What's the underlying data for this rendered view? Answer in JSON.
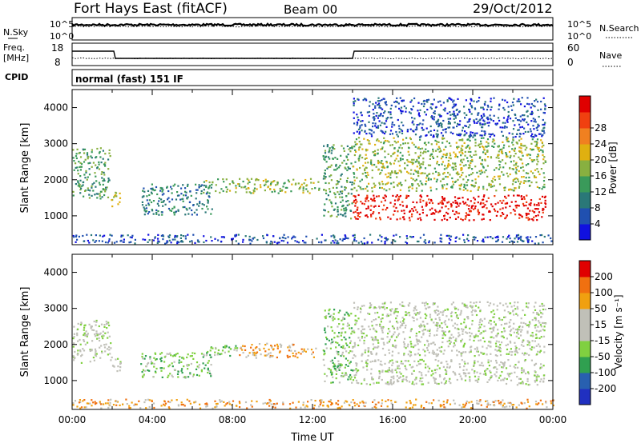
{
  "header": {
    "title": "Fort Hays East (fitACF)",
    "beam": "Beam 00",
    "date": "29/Oct/2012"
  },
  "params": {
    "nsky_label": "N.Sky",
    "nsky_ticks": [
      "10^5",
      "10^0"
    ],
    "nsearch_label": "N.Search",
    "nsearch_ticks": [
      "10^5",
      "10^0"
    ],
    "freq_label": "Freq.",
    "freq_unit": "[MHz]",
    "freq_ticks": [
      "18",
      "8"
    ],
    "nave_label": "Nave",
    "nave_ticks": [
      "60",
      "0"
    ],
    "cpid_label": "CPID",
    "cpid_text": "normal (fast) 151 IF"
  },
  "chart_data": [
    {
      "type": "heatmap",
      "name": "power",
      "ylabel": "Slant Range [km]",
      "xlabel": "",
      "ylim": [
        200,
        4500
      ],
      "yticks": [
        "1000",
        "2000",
        "3000",
        "4000"
      ],
      "xlim": [
        0,
        24
      ],
      "colorbar": {
        "label": "Power [dB]",
        "ticks": [
          "4",
          "8",
          "12",
          "16",
          "20",
          "24",
          "28"
        ],
        "colors": [
          "#1010e0",
          "#2050b0",
          "#2a7878",
          "#3a9a5a",
          "#88b040",
          "#e0b010",
          "#f08020",
          "#f04010",
          "#e00000"
        ]
      },
      "regions": [
        {
          "t0": 0.0,
          "t1": 1.9,
          "r0": 1500,
          "r1": 2900,
          "level": 3
        },
        {
          "t0": 1.9,
          "t1": 2.4,
          "r0": 1250,
          "r1": 1700,
          "level": 4
        },
        {
          "t0": 3.4,
          "t1": 7.0,
          "r0": 1050,
          "r1": 1900,
          "level": 2
        },
        {
          "t0": 6.5,
          "t1": 12.3,
          "r0": 1650,
          "r1": 2050,
          "level": 4
        },
        {
          "t0": 12.5,
          "t1": 14.0,
          "r0": 950,
          "r1": 3000,
          "level": 3
        },
        {
          "t0": 14.0,
          "t1": 23.6,
          "r0": 900,
          "r1": 1600,
          "level": 8
        },
        {
          "t0": 14.0,
          "t1": 23.6,
          "r0": 1700,
          "r1": 3200,
          "level": 4
        },
        {
          "t0": 14.0,
          "t1": 23.6,
          "r0": 3200,
          "r1": 4300,
          "level": 1
        },
        {
          "t0": 0.0,
          "t1": 24.0,
          "r0": 250,
          "r1": 500,
          "level": 1
        }
      ]
    },
    {
      "type": "heatmap",
      "name": "velocity",
      "ylabel": "Slant Range [km]",
      "xlabel": "Time UT",
      "ylim": [
        200,
        4500
      ],
      "yticks": [
        "1000",
        "2000",
        "3000",
        "4000"
      ],
      "xlim": [
        0,
        24
      ],
      "xticks": [
        "00:00",
        "04:00",
        "08:00",
        "12:00",
        "16:00",
        "20:00",
        "00:00"
      ],
      "colorbar": {
        "label": "Velocity [m s⁻¹]",
        "ticks": [
          "200",
          "100",
          "50",
          "15",
          "-15",
          "-50",
          "-100",
          "-200"
        ],
        "colors": [
          "#2030c0",
          "#2860b0",
          "#30a050",
          "#80d040",
          "#c0c0b8",
          "#c0c0b8",
          "#f0a010",
          "#f07010",
          "#e00000"
        ]
      },
      "regions": [
        {
          "t0": 0.0,
          "t1": 1.9,
          "r0": 1500,
          "r1": 2700,
          "level": 4
        },
        {
          "t0": 1.9,
          "t1": 2.4,
          "r0": 1250,
          "r1": 1700,
          "level": 4
        },
        {
          "t0": 3.4,
          "t1": 7.0,
          "r0": 1100,
          "r1": 1800,
          "level": 3
        },
        {
          "t0": 6.5,
          "t1": 8.3,
          "r0": 1650,
          "r1": 2000,
          "level": 3
        },
        {
          "t0": 8.3,
          "t1": 12.3,
          "r0": 1650,
          "r1": 2050,
          "level": 6
        },
        {
          "t0": 12.5,
          "t1": 14.0,
          "r0": 950,
          "r1": 3000,
          "level": 3
        },
        {
          "t0": 14.0,
          "t1": 23.6,
          "r0": 900,
          "r1": 1600,
          "level": 4
        },
        {
          "t0": 14.0,
          "t1": 23.6,
          "r0": 1700,
          "r1": 3200,
          "level": 4
        },
        {
          "t0": 0.0,
          "t1": 24.0,
          "r0": 250,
          "r1": 500,
          "level": 6
        }
      ]
    }
  ]
}
